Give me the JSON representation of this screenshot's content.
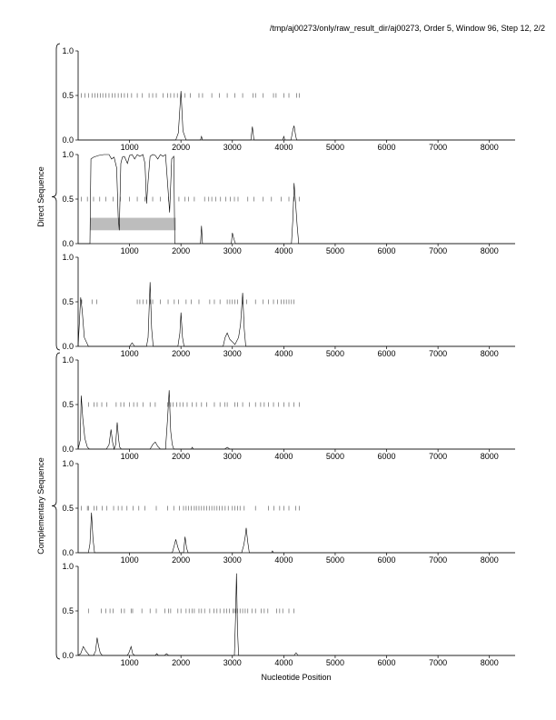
{
  "header": {
    "text": "/tmp/aj00273/only/raw_result_dir/aj00273, Order 5, Window 96, Step 12, 2/2"
  },
  "chart_data": {
    "type": "line",
    "xlabel": "Nucleotide Position",
    "xlim": [
      0,
      8500
    ],
    "xticks": [
      1000,
      2000,
      3000,
      4000,
      5000,
      6000,
      7000,
      8000
    ],
    "ylim": [
      0,
      1
    ],
    "yticks": [
      "0.0",
      "0.5",
      "1.0"
    ],
    "groups": [
      {
        "label": "Direct Sequence",
        "panels": [
          0,
          1,
          2
        ]
      },
      {
        "label": "Complementary Sequence",
        "panels": [
          3,
          4,
          5
        ]
      }
    ],
    "panels": [
      {
        "hit_marks": [
          60,
          130,
          200,
          270,
          330,
          380,
          430,
          480,
          540,
          600,
          660,
          720,
          780,
          840,
          900,
          960,
          1040,
          1150,
          1250,
          1380,
          1450,
          1520,
          1650,
          1740,
          1800,
          1870,
          1930,
          2000,
          2080,
          2180,
          2350,
          2420,
          2600,
          2750,
          2900,
          3050,
          3200,
          3400,
          3450,
          3600,
          3800,
          3850,
          4000,
          4100,
          4250,
          4300
        ],
        "series": [
          [
            0,
            0
          ],
          [
            1900,
            0
          ],
          [
            1950,
            0.08
          ],
          [
            2000,
            0.55
          ],
          [
            2040,
            0.1
          ],
          [
            2100,
            0
          ],
          [
            2380,
            0
          ],
          [
            2400,
            0.04
          ],
          [
            2420,
            0
          ],
          [
            3360,
            0
          ],
          [
            3390,
            0.15
          ],
          [
            3420,
            0
          ],
          [
            3980,
            0
          ],
          [
            4000,
            0.04
          ],
          [
            4020,
            0
          ],
          [
            4140,
            0
          ],
          [
            4180,
            0.12
          ],
          [
            4200,
            0.16
          ],
          [
            4230,
            0.05
          ],
          [
            4250,
            0
          ],
          [
            8500,
            0
          ]
        ]
      },
      {
        "highlight_band": {
          "x": [
            230,
            1900
          ],
          "y": [
            0.15,
            0.29
          ]
        },
        "hit_marks": [
          60,
          180,
          300,
          420,
          540,
          680,
          820,
          1000,
          1150,
          1300,
          1450,
          1600,
          1760,
          1960,
          2080,
          2150,
          2260,
          2460,
          2540,
          2600,
          2680,
          2770,
          2870,
          2960,
          3040,
          3110,
          3300,
          3420,
          3600,
          3760,
          3950,
          4100,
          4200,
          4300
        ],
        "series": [
          [
            0,
            0
          ],
          [
            200,
            0
          ],
          [
            230,
            0
          ],
          [
            250,
            0.95
          ],
          [
            300,
            0.97
          ],
          [
            400,
            0.99
          ],
          [
            500,
            1.0
          ],
          [
            600,
            1.0
          ],
          [
            650,
            0.95
          ],
          [
            700,
            0.97
          ],
          [
            750,
            0.85
          ],
          [
            780,
            0.3
          ],
          [
            800,
            0.15
          ],
          [
            830,
            0.9
          ],
          [
            860,
            0.97
          ],
          [
            900,
            0.98
          ],
          [
            960,
            0.9
          ],
          [
            1000,
            0.99
          ],
          [
            1050,
            1.0
          ],
          [
            1100,
            0.95
          ],
          [
            1150,
            1.0
          ],
          [
            1200,
            0.98
          ],
          [
            1260,
            1.0
          ],
          [
            1300,
            0.9
          ],
          [
            1330,
            0.45
          ],
          [
            1360,
            0.7
          ],
          [
            1400,
            0.98
          ],
          [
            1450,
            1.0
          ],
          [
            1500,
            0.99
          ],
          [
            1550,
            0.95
          ],
          [
            1600,
            1.0
          ],
          [
            1650,
            0.98
          ],
          [
            1700,
            1.0
          ],
          [
            1750,
            0.6
          ],
          [
            1780,
            0.35
          ],
          [
            1820,
            0.95
          ],
          [
            1860,
            0.98
          ],
          [
            1880,
            0
          ],
          [
            1900,
            0
          ],
          [
            2380,
            0
          ],
          [
            2400,
            0.2
          ],
          [
            2420,
            0
          ],
          [
            2980,
            0
          ],
          [
            3000,
            0.12
          ],
          [
            3030,
            0.05
          ],
          [
            3060,
            0
          ],
          [
            4150,
            0
          ],
          [
            4180,
            0.3
          ],
          [
            4200,
            0.68
          ],
          [
            4230,
            0.45
          ],
          [
            4260,
            0.2
          ],
          [
            4290,
            0
          ],
          [
            8500,
            0
          ]
        ]
      },
      {
        "hit_marks": [
          70,
          270,
          360,
          1150,
          1200,
          1260,
          1330,
          1400,
          1450,
          1600,
          1750,
          1870,
          1950,
          2100,
          2200,
          2350,
          2560,
          2650,
          2760,
          2900,
          2950,
          3000,
          3050,
          3100,
          3200,
          3280,
          3450,
          3600,
          3700,
          3800,
          3880,
          3950,
          4000,
          4050,
          4100,
          4150,
          4200
        ],
        "series": [
          [
            0,
            0
          ],
          [
            50,
            0.55
          ],
          [
            80,
            0.4
          ],
          [
            120,
            0.1
          ],
          [
            200,
            0
          ],
          [
            1000,
            0
          ],
          [
            1050,
            0.04
          ],
          [
            1100,
            0
          ],
          [
            1330,
            0
          ],
          [
            1360,
            0.1
          ],
          [
            1400,
            0.72
          ],
          [
            1430,
            0.2
          ],
          [
            1460,
            0
          ],
          [
            1940,
            0
          ],
          [
            1980,
            0.15
          ],
          [
            2000,
            0.38
          ],
          [
            2030,
            0.1
          ],
          [
            2060,
            0
          ],
          [
            2820,
            0
          ],
          [
            2860,
            0.1
          ],
          [
            2900,
            0.15
          ],
          [
            2950,
            0.08
          ],
          [
            3000,
            0.05
          ],
          [
            3050,
            0.02
          ],
          [
            3120,
            0.1
          ],
          [
            3160,
            0.25
          ],
          [
            3200,
            0.6
          ],
          [
            3230,
            0.2
          ],
          [
            3260,
            0
          ],
          [
            8500,
            0
          ]
        ]
      },
      {
        "hit_marks": [
          200,
          310,
          370,
          460,
          560,
          740,
          830,
          890,
          1000,
          1080,
          1150,
          1260,
          1400,
          1500,
          1740,
          1800,
          1850,
          1920,
          1980,
          2040,
          2120,
          2220,
          2300,
          2400,
          2500,
          2650,
          2760,
          2850,
          2900,
          3050,
          3100,
          3200,
          3330,
          3450,
          3550,
          3620,
          3700,
          3800,
          3900,
          4000,
          4100,
          4200,
          4300
        ],
        "series": [
          [
            0,
            0
          ],
          [
            40,
            0.1
          ],
          [
            60,
            0.6
          ],
          [
            90,
            0.35
          ],
          [
            130,
            0.12
          ],
          [
            180,
            0.02
          ],
          [
            220,
            0
          ],
          [
            550,
            0
          ],
          [
            600,
            0.05
          ],
          [
            640,
            0.22
          ],
          [
            670,
            0.08
          ],
          [
            700,
            0
          ],
          [
            730,
            0.05
          ],
          [
            760,
            0.3
          ],
          [
            790,
            0.1
          ],
          [
            810,
            0.02
          ],
          [
            840,
            0
          ],
          [
            1400,
            0
          ],
          [
            1450,
            0.05
          ],
          [
            1500,
            0.08
          ],
          [
            1550,
            0.03
          ],
          [
            1600,
            0
          ],
          [
            1700,
            0
          ],
          [
            1740,
            0.35
          ],
          [
            1770,
            0.66
          ],
          [
            1800,
            0.2
          ],
          [
            1830,
            0.05
          ],
          [
            1860,
            0
          ],
          [
            2200,
            0
          ],
          [
            2220,
            0.02
          ],
          [
            2240,
            0
          ],
          [
            2850,
            0
          ],
          [
            2900,
            0.02
          ],
          [
            2950,
            0
          ],
          [
            8500,
            0
          ]
        ]
      },
      {
        "hit_marks": [
          60,
          180,
          200,
          310,
          360,
          470,
          560,
          690,
          780,
          850,
          950,
          1070,
          1180,
          1300,
          1520,
          1740,
          1860,
          1970,
          2050,
          2100,
          2150,
          2200,
          2260,
          2300,
          2350,
          2400,
          2450,
          2500,
          2550,
          2600,
          2650,
          2700,
          2750,
          2800,
          2860,
          2920,
          3000,
          3050,
          3100,
          3150,
          3230,
          3450,
          3700,
          3810,
          3920,
          4000,
          4100,
          4230,
          4300
        ],
        "series": [
          [
            0,
            0
          ],
          [
            200,
            0
          ],
          [
            230,
            0.1
          ],
          [
            260,
            0.45
          ],
          [
            290,
            0.15
          ],
          [
            320,
            0
          ],
          [
            1830,
            0
          ],
          [
            1870,
            0.08
          ],
          [
            1900,
            0.15
          ],
          [
            1940,
            0.06
          ],
          [
            1980,
            0
          ],
          [
            2050,
            0
          ],
          [
            2080,
            0.18
          ],
          [
            2110,
            0.05
          ],
          [
            2140,
            0
          ],
          [
            3180,
            0
          ],
          [
            3220,
            0.08
          ],
          [
            3250,
            0.18
          ],
          [
            3270,
            0.28
          ],
          [
            3300,
            0.12
          ],
          [
            3330,
            0
          ],
          [
            3760,
            0
          ],
          [
            3780,
            0.02
          ],
          [
            3800,
            0
          ],
          [
            8500,
            0
          ]
        ]
      },
      {
        "hit_marks": [
          200,
          450,
          540,
          620,
          680,
          840,
          900,
          1030,
          1060,
          1240,
          1400,
          1520,
          1690,
          1760,
          1800,
          1940,
          2000,
          2100,
          2160,
          2220,
          2260,
          2350,
          2400,
          2460,
          2560,
          2640,
          2700,
          2760,
          2840,
          2890,
          2940,
          3010,
          3040,
          3070,
          3100,
          3150,
          3200,
          3250,
          3300,
          3380,
          3450,
          3560,
          3620,
          3690,
          3860,
          3920,
          3980,
          4100,
          4200
        ],
        "series": [
          [
            0,
            0
          ],
          [
            50,
            0.02
          ],
          [
            100,
            0.1
          ],
          [
            150,
            0.05
          ],
          [
            220,
            0
          ],
          [
            300,
            0
          ],
          [
            340,
            0.05
          ],
          [
            370,
            0.2
          ],
          [
            400,
            0.1
          ],
          [
            430,
            0.03
          ],
          [
            470,
            0
          ],
          [
            950,
            0
          ],
          [
            980,
            0.02
          ],
          [
            1000,
            0.05
          ],
          [
            1030,
            0.1
          ],
          [
            1060,
            0.02
          ],
          [
            1100,
            0
          ],
          [
            1500,
            0
          ],
          [
            1530,
            0.02
          ],
          [
            1560,
            0
          ],
          [
            1680,
            0
          ],
          [
            1720,
            0.02
          ],
          [
            1760,
            0
          ],
          [
            3040,
            0
          ],
          [
            3060,
            0.4
          ],
          [
            3080,
            0.92
          ],
          [
            3100,
            0.3
          ],
          [
            3120,
            0
          ],
          [
            4200,
            0
          ],
          [
            4240,
            0.03
          ],
          [
            4280,
            0
          ],
          [
            8500,
            0
          ]
        ]
      }
    ]
  }
}
